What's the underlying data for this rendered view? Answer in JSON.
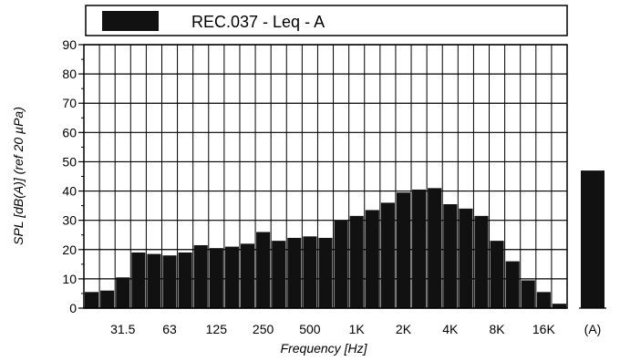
{
  "chart_data": {
    "type": "bar",
    "title": "REC.037 - Leq - A",
    "xlabel": "Frequency [Hz]",
    "ylabel": "SPL [dB(A)] (ref 20 µPa)",
    "ylim": [
      0,
      90
    ],
    "yticks": [
      "0",
      "10",
      "20",
      "30",
      "40",
      "50",
      "60",
      "70",
      "80",
      "90"
    ],
    "xtick_labels": [
      "31.5",
      "63",
      "125",
      "250",
      "500",
      "1K",
      "2K",
      "4K",
      "8K",
      "16K"
    ],
    "grid": true,
    "bands": [
      "20",
      "25",
      "31.5",
      "40",
      "50",
      "63",
      "80",
      "100",
      "125",
      "160",
      "200",
      "250",
      "315",
      "400",
      "500",
      "630",
      "800",
      "1K",
      "1.25K",
      "1.6K",
      "2K",
      "2.5K",
      "3.15K",
      "4K",
      "5K",
      "6.3K",
      "8K",
      "10K",
      "12.5K",
      "16K",
      "20K"
    ],
    "values": [
      5.5,
      6,
      10.5,
      19,
      18.5,
      18,
      19,
      21.5,
      20.5,
      21,
      22,
      26,
      23,
      24,
      24.5,
      24,
      30,
      31.5,
      33.5,
      36,
      39.5,
      40.5,
      41,
      35.5,
      34,
      31.5,
      23,
      16,
      9.5,
      5.5,
      1.5
    ],
    "overall": {
      "label": "(A)",
      "value": 47
    }
  }
}
